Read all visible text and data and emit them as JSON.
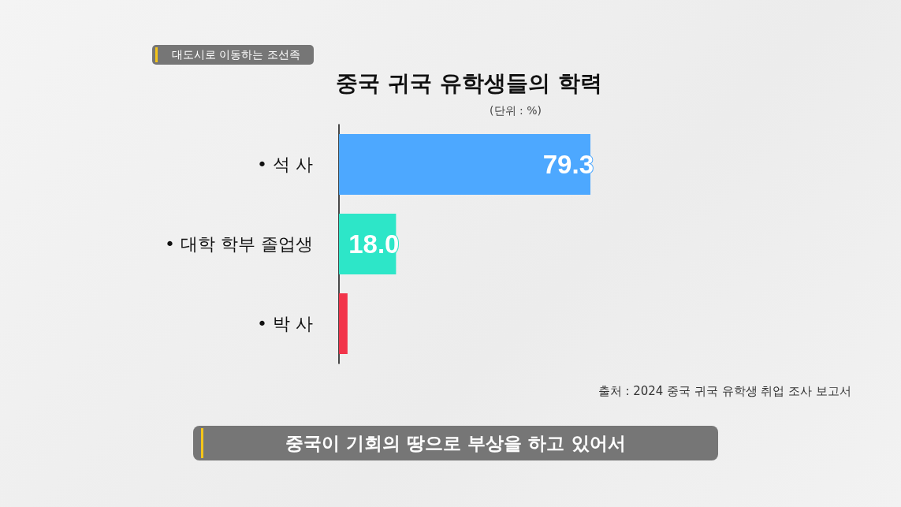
{
  "chart_data": {
    "type": "bar",
    "orientation": "horizontal",
    "title": "중국 귀국 유학생들의 학력",
    "subtitle": "(단위 : %)",
    "categories": [
      "• 석 사",
      "• 대학 학부 졸업생",
      "• 박 사"
    ],
    "values": [
      79.3,
      18.0,
      2.7
    ],
    "colors": [
      "#4da8ff",
      "#2de6c8",
      "#f2344a"
    ],
    "value_labels": [
      "79.3",
      "18.0",
      null
    ],
    "annotations": [
      "대도시로 이동하는 조선족",
      "출처 : 2024 중국 귀국 유학생 취업 조사 보고서",
      "중국이 기회의 땅으로 부상을 하고 있어서"
    ]
  }
}
